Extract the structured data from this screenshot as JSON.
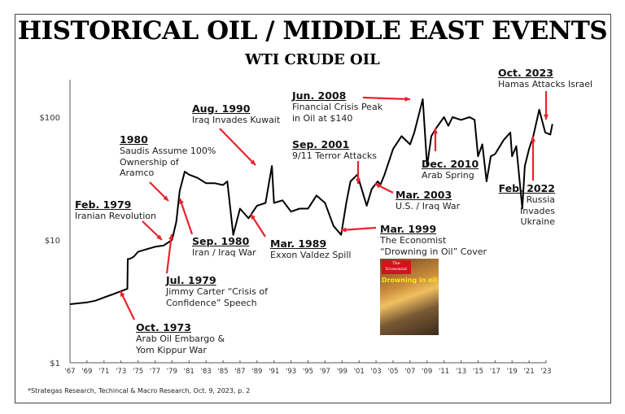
{
  "title": "HISTORICAL OIL / MIDDLE EAST EVENTS",
  "subtitle": "WTI CRUDE OIL",
  "footnote": "*Strategas Research, Techincal & Macro Research, Oct. 9, 2023, p. 2",
  "colors": {
    "line": "#000000",
    "arrow": "#e8232d",
    "frame": "#444444"
  },
  "cover": {
    "masthead": "The Economist",
    "headline": "Drowning in oil"
  },
  "chart_data": {
    "type": "line",
    "title": "HISTORICAL OIL / MIDDLE EAST EVENTS",
    "subtitle": "WTI CRUDE OIL",
    "y_scale": "log",
    "ylim": [
      1,
      200
    ],
    "xlim": [
      1967,
      2023.8
    ],
    "grid": false,
    "y_ticks": [
      {
        "value": 1,
        "label": "$1"
      },
      {
        "value": 10,
        "label": "$10"
      },
      {
        "value": 100,
        "label": "$100"
      }
    ],
    "x_ticks": [
      "'67",
      "'69",
      "'71",
      "'73",
      "'75",
      "'77",
      "'79",
      "'81",
      "'83",
      "'85",
      "'87",
      "'89",
      "'91",
      "'93",
      "'95",
      "'97",
      "'99",
      "'01",
      "'03",
      "'05",
      "'07",
      "'09",
      "'11",
      "'13",
      "'15",
      "'17",
      "'19",
      "'21",
      "'23"
    ],
    "x_tick_years": [
      1967,
      1969,
      1971,
      1973,
      1975,
      1977,
      1979,
      1981,
      1983,
      1985,
      1987,
      1989,
      1991,
      1993,
      1995,
      1997,
      1999,
      2001,
      2003,
      2005,
      2007,
      2009,
      2011,
      2013,
      2015,
      2017,
      2019,
      2021,
      2023
    ],
    "series": [
      {
        "x": [
          1967,
          1969,
          1970,
          1971,
          1972,
          1973.75,
          1973.8,
          1974,
          1974.5,
          1975,
          1976,
          1977,
          1978,
          1979,
          1979.5,
          1979.9,
          1980.5,
          1981,
          1982,
          1983,
          1984,
          1985,
          1985.5,
          1986.2,
          1986.6,
          1987,
          1988,
          1989,
          1990,
          1990.75,
          1991,
          1992,
          1993,
          1994,
          1995,
          1996,
          1997,
          1998,
          1998.9,
          1999.5,
          2000,
          2000.8,
          2001.9,
          2002.5,
          2003.2,
          2003.5,
          2004,
          2005,
          2006,
          2007,
          2007.5,
          2008.5,
          2009,
          2009.5,
          2010,
          2011,
          2011.5,
          2012,
          2013,
          2014,
          2014.6,
          2015,
          2015.5,
          2016,
          2016.5,
          2017,
          2018,
          2018.8,
          2019,
          2019.5,
          2020.2,
          2020.5,
          2021,
          2021.5,
          2022.2,
          2022.6,
          2022.9,
          2023.5,
          2023.75
        ],
        "y": [
          3.0,
          3.1,
          3.2,
          3.4,
          3.6,
          4.0,
          7.0,
          7.0,
          7.3,
          8.0,
          8.4,
          8.8,
          9.0,
          10,
          14,
          25,
          36,
          34,
          32,
          29,
          29,
          28,
          30,
          11,
          14,
          18,
          15,
          19,
          20,
          40,
          20,
          21,
          17,
          18,
          18,
          23,
          20,
          13,
          11,
          20,
          30,
          34,
          19,
          26,
          30,
          28,
          34,
          55,
          70,
          60,
          75,
          140,
          40,
          70,
          80,
          100,
          85,
          100,
          95,
          100,
          95,
          48,
          60,
          30,
          48,
          50,
          65,
          75,
          48,
          58,
          18,
          40,
          55,
          70,
          115,
          90,
          75,
          72,
          88
        ]
      }
    ],
    "annotations": [
      {
        "title": "Oct. 1973",
        "lines": [
          "Arab Oil Embargo &",
          "Yom Kippur War"
        ]
      },
      {
        "title": "Jul. 1979",
        "lines": [
          "Jimmy Carter “Crisis of",
          "Confidence” Speech"
        ]
      },
      {
        "title": "Feb. 1979",
        "lines": [
          "Iranian Revolution"
        ]
      },
      {
        "title": "1980",
        "lines": [
          "Saudis Assume 100%",
          "Ownership of",
          "Aramco"
        ]
      },
      {
        "title": "Sep. 1980",
        "lines": [
          "Iran / Iraq War"
        ]
      },
      {
        "title": "Aug. 1990",
        "lines": [
          "Iraq Invades Kuwait"
        ]
      },
      {
        "title": "Mar. 1989",
        "lines": [
          "Exxon Valdez Spill"
        ]
      },
      {
        "title": "Sep. 2001",
        "lines": [
          "9/11 Terror Attacks"
        ]
      },
      {
        "title": "Jun. 2008",
        "lines": [
          "Financial Crisis Peak",
          "in Oil at $140"
        ]
      },
      {
        "title": "Mar. 1999",
        "lines": [
          "The Economist",
          "“Drowning in Oil” Cover"
        ]
      },
      {
        "title": "Mar. 2003",
        "lines": [
          "U.S. / Iraq War"
        ]
      },
      {
        "title": "Dec. 2010",
        "lines": [
          "Arab Spring"
        ]
      },
      {
        "title": "Oct. 2023",
        "lines": [
          "Hamas Attacks Israel"
        ]
      },
      {
        "title": "Feb. 2022",
        "lines": [
          "Russia",
          "Invades",
          "Ukraine"
        ]
      }
    ]
  }
}
